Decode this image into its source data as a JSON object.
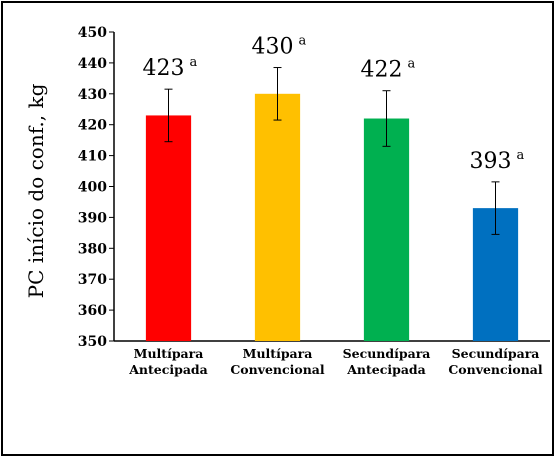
{
  "chart_data": {
    "type": "bar",
    "title": "",
    "xlabel": "",
    "ylabel": "PC início do conf., kg",
    "ylim": [
      350,
      450
    ],
    "ytick_step": 10,
    "grid": false,
    "categories": [
      [
        "Multípara",
        "Antecipada"
      ],
      [
        "Multípara",
        "Convencional"
      ],
      [
        "Secundípara",
        "Antecipada"
      ],
      [
        "Secundípara",
        "Convencional"
      ]
    ],
    "values": [
      423,
      430,
      422,
      393
    ],
    "error": [
      8.5,
      8.5,
      9.0,
      8.5
    ],
    "labels": [
      "423",
      "430",
      "422",
      "393"
    ],
    "label_superscripts": [
      "a",
      "a",
      "a",
      "a"
    ],
    "colors": [
      "#ff0000",
      "#ffc000",
      "#00b050",
      "#0070c0"
    ]
  }
}
